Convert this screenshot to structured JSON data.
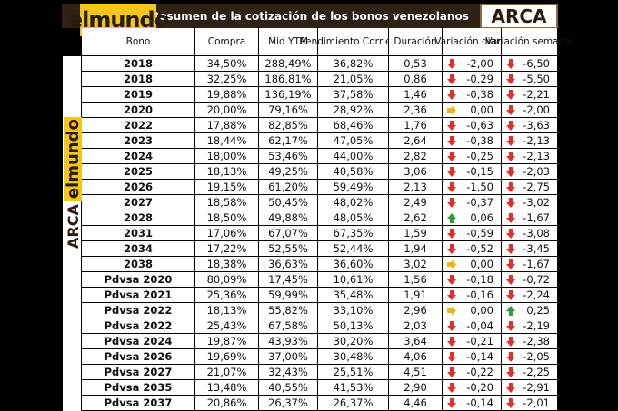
{
  "header": {
    "title": "Resumen de la cotización de los bonos venezolanos",
    "logo_left": "elmundo",
    "logo_right": "ARCA"
  },
  "table": {
    "columns": [
      "Bono",
      "Compra",
      "Mid YTM",
      "Rendimiento Corriente",
      "Duración",
      "Variación diaria",
      "Variación semanal"
    ],
    "rows": [
      [
        "2018",
        "34,50%",
        "288,49%",
        "36,82%",
        "0,53",
        "-2,00",
        "-6,50"
      ],
      [
        "2018",
        "32,25%",
        "186,81%",
        "21,05%",
        "0,86",
        "-0,29",
        "-5,50"
      ],
      [
        "2019",
        "19,88%",
        "136,19%",
        "37,58%",
        "1,46",
        "-0,38",
        "-2,21"
      ],
      [
        "2020",
        "20,00%",
        "79,16%",
        "28,92%",
        "2,36",
        "0,00",
        "-2,00"
      ],
      [
        "2022",
        "17,88%",
        "82,85%",
        "68,46%",
        "1,76",
        "-0,63",
        "-3,63"
      ],
      [
        "2023",
        "18,44%",
        "62,17%",
        "47,05%",
        "2,64",
        "-0,38",
        "-2,13"
      ],
      [
        "2024",
        "18,00%",
        "53,46%",
        "44,00%",
        "2,82",
        "-0,25",
        "-2,13"
      ],
      [
        "2025",
        "18,13%",
        "49,25%",
        "40,58%",
        "3,06",
        "-0,15",
        "-2,03"
      ],
      [
        "2026",
        "19,15%",
        "61,20%",
        "59,49%",
        "2,13",
        "-1,50",
        "-2,75"
      ],
      [
        "2027",
        "18,58%",
        "50,45%",
        "48,02%",
        "2,49",
        "-0,37",
        "-3,02"
      ],
      [
        "2028",
        "18,50%",
        "49,88%",
        "48,05%",
        "2,62",
        "0,06",
        "-1,67"
      ],
      [
        "2031",
        "17,06%",
        "67,07%",
        "67,35%",
        "1,59",
        "-0,59",
        "-3,08"
      ],
      [
        "2034",
        "17,22%",
        "52,55%",
        "52,44%",
        "1,94",
        "-0,52",
        "-3,45"
      ],
      [
        "2038",
        "18,38%",
        "36,63%",
        "36,60%",
        "3,02",
        "0,00",
        "-1,67"
      ],
      [
        "Pdvsa 2020",
        "80,09%",
        "17,45%",
        "10,61%",
        "1,56",
        "-0,18",
        "-0,72"
      ],
      [
        "Pdvsa 2021",
        "25,36%",
        "59,99%",
        "35,48%",
        "1,91",
        "-0,16",
        "-2,24"
      ],
      [
        "Pdvsa 2022",
        "18,13%",
        "55,82%",
        "33,10%",
        "2,96",
        "0,00",
        "0,25"
      ],
      [
        "Pdvsa 2022",
        "25,43%",
        "67,58%",
        "50,13%",
        "2,03",
        "-0,04",
        "-2,19"
      ],
      [
        "Pdvsa 2024",
        "19,87%",
        "43,93%",
        "30,20%",
        "3,64",
        "-0,21",
        "-2,38"
      ],
      [
        "Pdvsa 2026",
        "19,69%",
        "37,00%",
        "30,48%",
        "4,06",
        "-0,14",
        "-2,05"
      ],
      [
        "Pdvsa 2027",
        "21,07%",
        "32,43%",
        "25,51%",
        "4,51",
        "-0,22",
        "-2,25"
      ],
      [
        "Pdvsa 2035",
        "13,48%",
        "40,55%",
        "41,53%",
        "2,90",
        "-0,20",
        "-2,91"
      ],
      [
        "Pdvsa 2037",
        "20,86%",
        "26,37%",
        "26,37%",
        "4,46",
        "-0,14",
        "-2,01"
      ]
    ]
  }
}
